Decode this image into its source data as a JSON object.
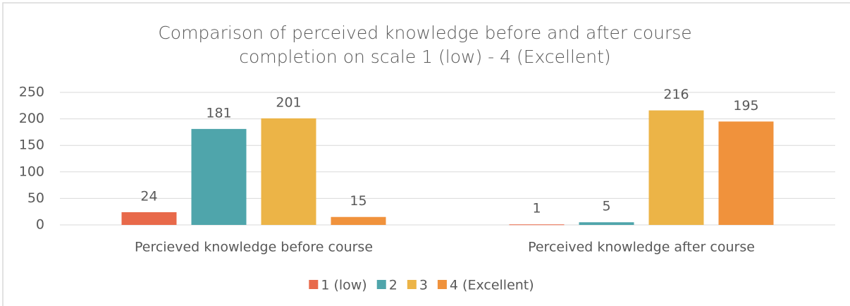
{
  "chart_data": {
    "type": "bar",
    "title": "Comparison of perceived knowledge before and after course completion on scale 1 (low) - 4 (Excellent)",
    "categories": [
      "Percieved knowledge before course",
      "Perceived knowledge after course"
    ],
    "series": [
      {
        "name": "1 (low)",
        "color": "#e8694a",
        "values": [
          24,
          1
        ]
      },
      {
        "name": "2",
        "color": "#4fa5ab",
        "values": [
          181,
          5
        ]
      },
      {
        "name": "3",
        "color": "#ecb447",
        "values": [
          201,
          216
        ]
      },
      {
        "name": "4 (Excellent)",
        "color": "#f0923c",
        "values": [
          15,
          195
        ]
      }
    ],
    "ylim": [
      0,
      250
    ],
    "yticks": [
      0,
      50,
      100,
      150,
      200,
      250
    ],
    "grid": true,
    "legend": "bottom"
  }
}
